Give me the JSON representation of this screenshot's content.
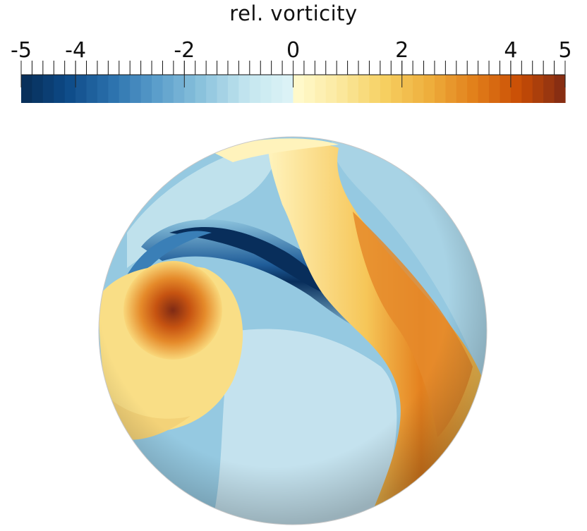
{
  "colorbar": {
    "title": "rel. vorticity",
    "min": -5,
    "max": 5,
    "major_ticks": [
      {
        "value": -5,
        "label": "-5"
      },
      {
        "value": -4,
        "label": "-4"
      },
      {
        "value": -2,
        "label": "-2"
      },
      {
        "value": 0,
        "label": "0"
      },
      {
        "value": 2,
        "label": "2"
      },
      {
        "value": 4,
        "label": "4"
      },
      {
        "value": 5,
        "label": "5"
      }
    ],
    "colormap": {
      "negative": [
        "#072d55",
        "#0d4a87",
        "#2b71ad",
        "#5b9ecb",
        "#8cc3dd",
        "#c4e6ef",
        "#def4f7"
      ],
      "positive": [
        "#fffbd0",
        "#fbe9a0",
        "#f6d061",
        "#eeae3c",
        "#e27f1a",
        "#c94d05",
        "#7f2a14"
      ]
    }
  },
  "sphere": {
    "colors": {
      "background_blue": "#95c9e1",
      "light_blue": "#cfe9f1",
      "deep_blue": "#082e5b",
      "mid_blue": "#2b6ea9",
      "pale_yellow": "#fff3bc",
      "yellow": "#f9de86",
      "orange": "#e58a2a",
      "dark_orange": "#c65311",
      "red_brown": "#8f2f12"
    }
  }
}
